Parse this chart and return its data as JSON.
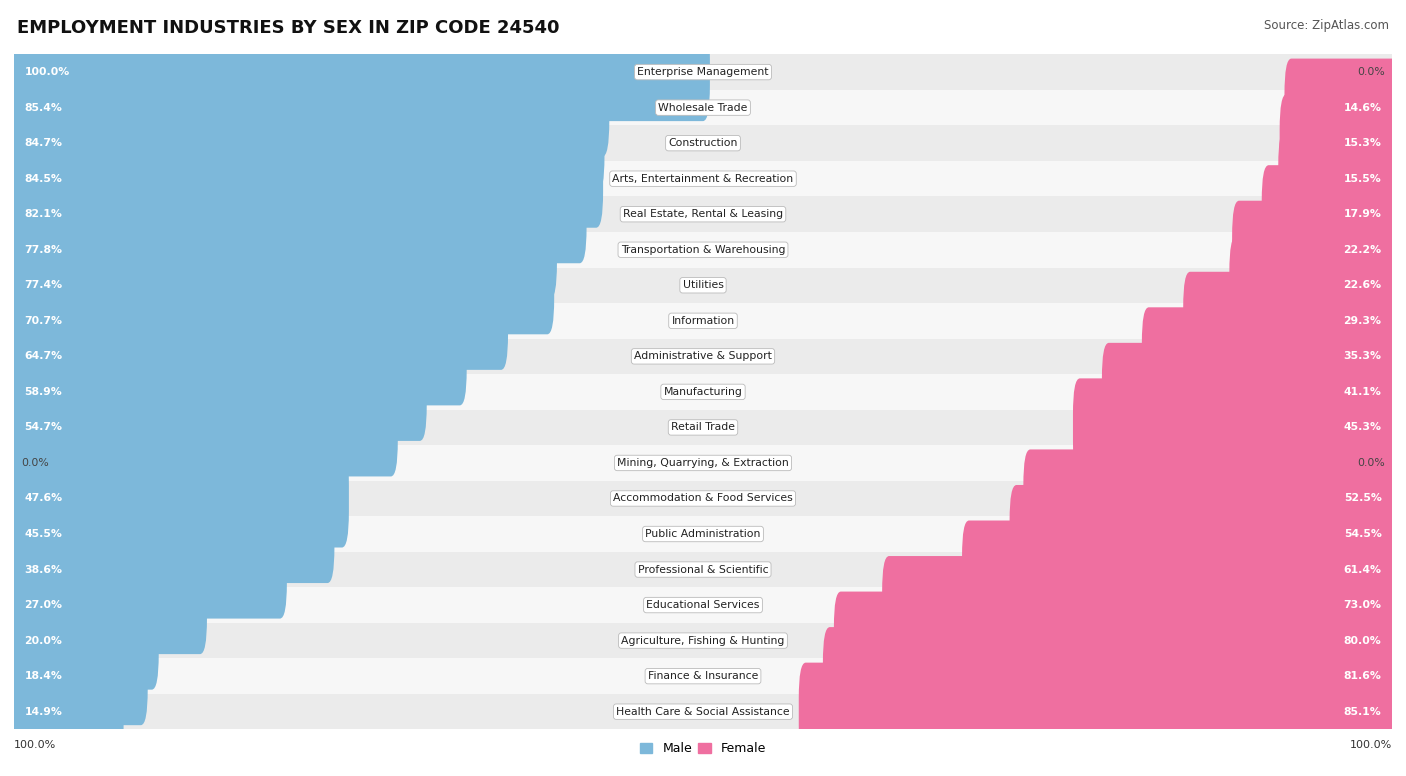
{
  "title": "EMPLOYMENT INDUSTRIES BY SEX IN ZIP CODE 24540",
  "source": "Source: ZipAtlas.com",
  "industries": [
    "Enterprise Management",
    "Wholesale Trade",
    "Construction",
    "Arts, Entertainment & Recreation",
    "Real Estate, Rental & Leasing",
    "Transportation & Warehousing",
    "Utilities",
    "Information",
    "Administrative & Support",
    "Manufacturing",
    "Retail Trade",
    "Mining, Quarrying, & Extraction",
    "Accommodation & Food Services",
    "Public Administration",
    "Professional & Scientific",
    "Educational Services",
    "Agriculture, Fishing & Hunting",
    "Finance & Insurance",
    "Health Care & Social Assistance"
  ],
  "male_pct": [
    100.0,
    85.4,
    84.7,
    84.5,
    82.1,
    77.8,
    77.4,
    70.7,
    64.7,
    58.9,
    54.7,
    0.0,
    47.6,
    45.5,
    38.6,
    27.0,
    20.0,
    18.4,
    14.9
  ],
  "female_pct": [
    0.0,
    14.6,
    15.3,
    15.5,
    17.9,
    22.2,
    22.6,
    29.3,
    35.3,
    41.1,
    45.3,
    0.0,
    52.5,
    54.5,
    61.4,
    73.0,
    80.0,
    81.6,
    85.1
  ],
  "male_color": "#7DB8DA",
  "female_color": "#EF6FA0",
  "bg_row_even": "#EBEBEB",
  "bg_row_odd": "#F7F7F7",
  "title_fontsize": 13,
  "source_fontsize": 8.5,
  "label_fontsize": 7.8,
  "pct_fontsize": 7.8
}
